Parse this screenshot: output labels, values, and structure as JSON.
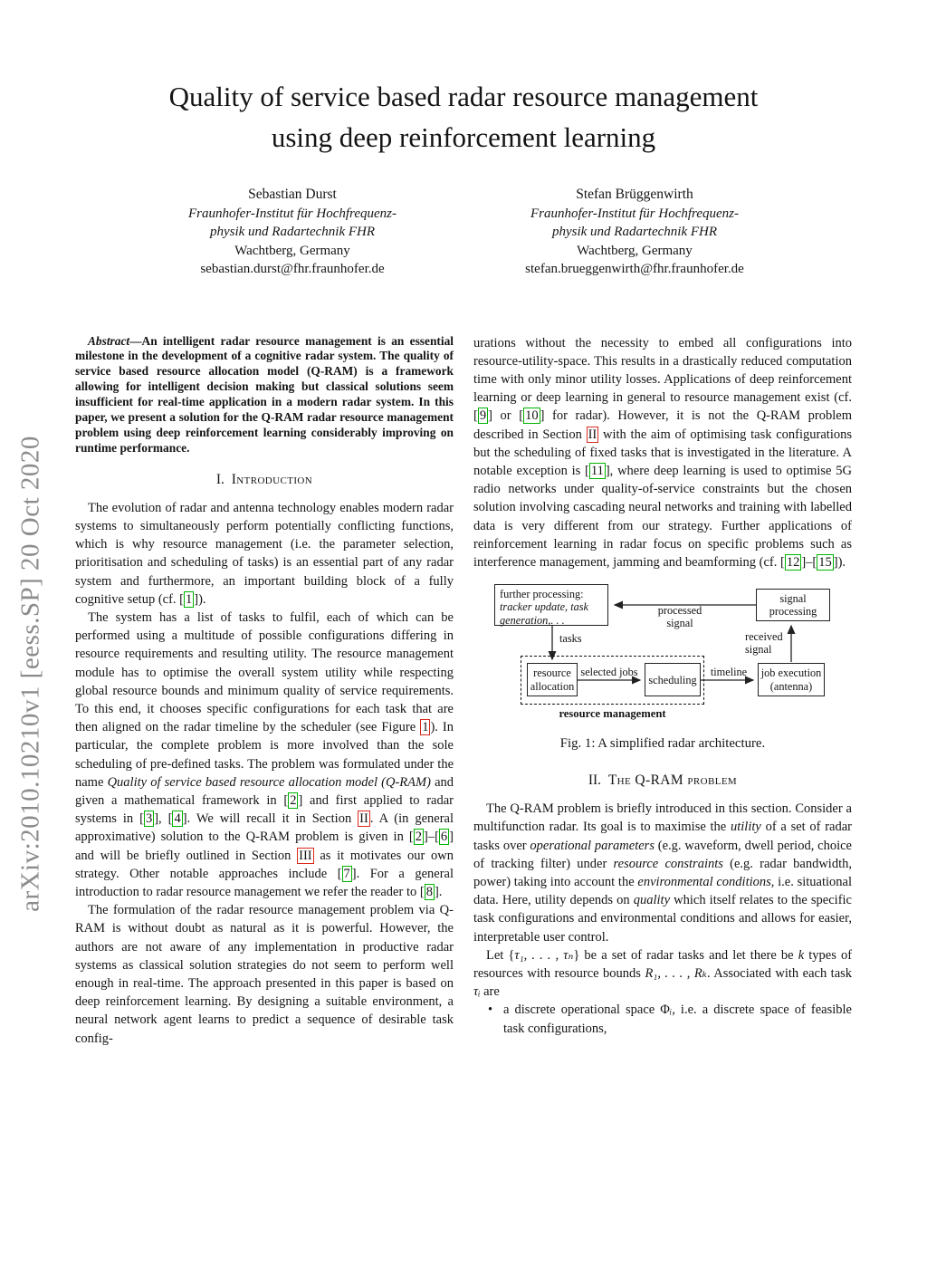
{
  "watermark": {
    "text": "arXiv:2010.10210v1  [eess.SP]  20 Oct 2020"
  },
  "title": {
    "line1": "Quality of service based radar resource management",
    "line2": "using deep reinforcement learning"
  },
  "authors": [
    {
      "name": "Sebastian Durst",
      "affil1": "Fraunhofer-Institut für Hochfrequenz-",
      "affil2": "physik und Radartechnik FHR",
      "city": "Wachtberg, Germany",
      "email": "sebastian.durst@fhr.fraunhofer.de"
    },
    {
      "name": "Stefan Brüggenwirth",
      "affil1": "Fraunhofer-Institut für Hochfrequenz-",
      "affil2": "physik und Radartechnik FHR",
      "city": "Wachtberg, Germany",
      "email": "stefan.brueggenwirth@fhr.fraunhofer.de"
    }
  ],
  "abstract": {
    "lead": "Abstract",
    "body": "—An intelligent radar resource management is an essential milestone in the development of a cognitive radar system. The quality of service based resource allocation model (Q-RAM) is a framework allowing for intelligent decision making but classical solutions seem insufficient for real-time application in a modern radar system. In this paper, we present a solution for the Q-RAM radar resource management problem using deep reinforcement learning considerably improving on runtime performance."
  },
  "sections": {
    "intro": {
      "number": "I.",
      "title": "Introduction"
    },
    "qram": {
      "number": "II.",
      "title": "The Q-RAM problem"
    }
  },
  "left_col": {
    "para1": [
      {
        "s": "t",
        "v": "The evolution of radar and antenna technology enables modern radar systems to simultaneously perform potentially conflicting functions, which is why resource management (i.e. the parameter selection, prioritisation and scheduling of tasks) is an essential part of any radar system and furthermore, an important building block of a fully cognitive setup (cf. ["
      },
      {
        "s": "cite",
        "v": "1"
      },
      {
        "s": "t",
        "v": "])."
      }
    ],
    "para2": [
      {
        "s": "t",
        "v": "The system has a list of tasks to fulfil, each of which can be performed using a multitude of possible configurations differing in resource requirements and resulting utility. The resource management module has to optimise the overall system utility while respecting global resource bounds and minimum quality of service requirements. To this end, it chooses specific configurations for each task that are then aligned on the radar timeline by the scheduler (see Figure "
      },
      {
        "s": "ref",
        "v": "1"
      },
      {
        "s": "t",
        "v": "). In particular, the complete problem is more involved than the sole scheduling of pre-defined tasks. The problem was formulated under the name "
      },
      {
        "s": "i",
        "v": "Quality of service based resource allocation model (Q-RAM)"
      },
      {
        "s": "t",
        "v": " and given a mathematical framework in ["
      },
      {
        "s": "cite",
        "v": "2"
      },
      {
        "s": "t",
        "v": "] and first applied to radar systems in ["
      },
      {
        "s": "cite",
        "v": "3"
      },
      {
        "s": "t",
        "v": "], ["
      },
      {
        "s": "cite",
        "v": "4"
      },
      {
        "s": "t",
        "v": "]. We will recall it in Section "
      },
      {
        "s": "ref",
        "v": "II"
      },
      {
        "s": "t",
        "v": ". A (in general approximative) solution to the Q-RAM problem is given in ["
      },
      {
        "s": "cite",
        "v": "2"
      },
      {
        "s": "t",
        "v": "]–["
      },
      {
        "s": "cite",
        "v": "6"
      },
      {
        "s": "t",
        "v": "] and will be briefly outlined in Section "
      },
      {
        "s": "ref",
        "v": "III"
      },
      {
        "s": "t",
        "v": " as it motivates our own strategy. Other notable approaches include ["
      },
      {
        "s": "cite",
        "v": "7"
      },
      {
        "s": "t",
        "v": "]. For a general introduction to radar resource management we refer the reader to ["
      },
      {
        "s": "cite",
        "v": "8"
      },
      {
        "s": "t",
        "v": "]."
      }
    ],
    "para3": [
      {
        "s": "t",
        "v": "The formulation of the radar resource management problem via Q-RAM is without doubt as natural as it is powerful. However, the authors are not aware of any implementation in productive radar systems as classical solution strategies do not seem to perform well enough in real-time. The approach presented in this paper is based on deep reinforcement learning. By designing a suitable environment, a neural network agent learns to predict a sequence of desirable task config-"
      }
    ]
  },
  "right_col": {
    "para1": [
      {
        "s": "t",
        "v": "urations without the necessity to embed all configurations into resource-utility-space. This results in a drastically reduced computation time with only minor utility losses. Applications of deep reinforcement learning or deep learning in general to resource management exist (cf. ["
      },
      {
        "s": "cite",
        "v": "9"
      },
      {
        "s": "t",
        "v": "] or ["
      },
      {
        "s": "cite",
        "v": "10"
      },
      {
        "s": "t",
        "v": "] for radar). However, it is not the Q-RAM problem described in Section "
      },
      {
        "s": "ref",
        "v": "II"
      },
      {
        "s": "t",
        "v": " with the aim of optimising task configurations but the scheduling of fixed tasks that is investigated in the literature. A notable exception is ["
      },
      {
        "s": "cite",
        "v": "11"
      },
      {
        "s": "t",
        "v": "], where deep learning is used to optimise 5G radio networks under quality-of-service constraints but the chosen solution involving cascading neural networks and training with labelled data is very different from our strategy. Further applications of reinforcement learning in radar focus on specific problems such as interference management, jamming and beamforming (cf. ["
      },
      {
        "s": "cite",
        "v": "12"
      },
      {
        "s": "t",
        "v": "]–["
      },
      {
        "s": "cite",
        "v": "15"
      },
      {
        "s": "t",
        "v": "])."
      }
    ],
    "qram_para1": [
      {
        "s": "t",
        "v": "The Q-RAM problem is briefly introduced in this section. Consider a multifunction radar. Its goal is to maximise the "
      },
      {
        "s": "i",
        "v": "utility"
      },
      {
        "s": "t",
        "v": " of a set of radar tasks over "
      },
      {
        "s": "i",
        "v": "operational parameters"
      },
      {
        "s": "t",
        "v": " (e.g. waveform, dwell period, choice of tracking filter) under "
      },
      {
        "s": "i",
        "v": "resource constraints"
      },
      {
        "s": "t",
        "v": " (e.g. radar bandwidth, power) taking into account the "
      },
      {
        "s": "i",
        "v": "environmental conditions"
      },
      {
        "s": "t",
        "v": ", i.e. situational data. Here, utility depends on "
      },
      {
        "s": "i",
        "v": "quality"
      },
      {
        "s": "t",
        "v": " which itself relates to the specific task configurations and environmental conditions and allows for easier, interpretable user control."
      }
    ],
    "qram_para2": [
      {
        "s": "t",
        "v": "Let {"
      },
      {
        "s": "i",
        "v": "τ₁, . . . , τₙ"
      },
      {
        "s": "t",
        "v": "} be a set of radar tasks and let there be "
      },
      {
        "s": "i",
        "v": "k"
      },
      {
        "s": "t",
        "v": " types of resources with resource bounds "
      },
      {
        "s": "i",
        "v": "R₁, . . . , Rₖ"
      },
      {
        "s": "t",
        "v": ". Associated with each task "
      },
      {
        "s": "i",
        "v": "τᵢ"
      },
      {
        "s": "t",
        "v": " are"
      }
    ],
    "bullet1": [
      {
        "s": "t",
        "v": "a discrete operational space Φ"
      },
      {
        "s": "i",
        "v": "ᵢ"
      },
      {
        "s": "t",
        "v": ", i.e. a discrete space of feasible task configurations,"
      }
    ]
  },
  "figure": {
    "bullet_glyph": "•",
    "boxes": {
      "further_processing_title": "further processing:",
      "further_processing_detail": "tracker update, task generation,. . .",
      "signal_processing": "signal processing",
      "resource_allocation": "resource allocation",
      "scheduling": "scheduling",
      "job_execution_line1": "job execution",
      "job_execution_line2": "(antenna)"
    },
    "labels": {
      "processed_signal": "processed signal",
      "received_signal": "received signal",
      "tasks": "tasks",
      "selected_jobs": "selected jobs",
      "timeline": "timeline",
      "resource_management": "resource management"
    },
    "caption": "Fig. 1: A simplified radar architecture."
  },
  "colors": {
    "citation_green": "#00b400",
    "internal_ref_red": "#da2a1d",
    "watermark_gray": "#8b8b8b"
  }
}
